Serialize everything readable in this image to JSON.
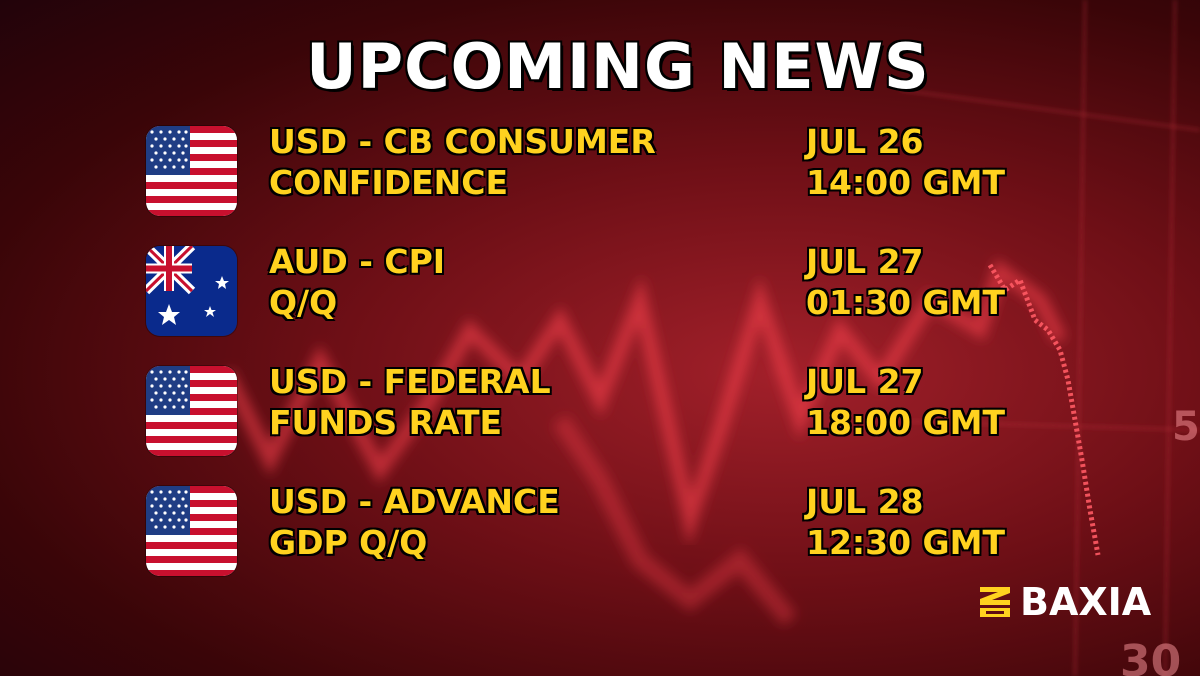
{
  "title": "UPCOMING NEWS",
  "events": [
    {
      "flag": "us-flag-icon",
      "line1": "USD - CB CONSUMER",
      "line2": "CONFIDENCE",
      "date": "JUL 26",
      "time": "14:00 GMT"
    },
    {
      "flag": "au-flag-icon",
      "line1": "AUD - CPI",
      "line2": "Q/Q",
      "date": "JUL 27",
      "time": "01:30 GMT"
    },
    {
      "flag": "us-flag-icon",
      "line1": "USD - FEDERAL",
      "line2": "FUNDS RATE",
      "date": "JUL 27",
      "time": "18:00 GMT"
    },
    {
      "flag": "us-flag-icon",
      "line1": "USD - ADVANCE",
      "line2": "GDP Q/Q",
      "date": "JUL 28",
      "time": "12:30 GMT"
    }
  ],
  "brand": {
    "name": "BAXIA",
    "mark_color": "#ffd21f"
  },
  "colors": {
    "accent": "#ffd21f",
    "title": "#ffffff",
    "background": "#7a0f18"
  }
}
